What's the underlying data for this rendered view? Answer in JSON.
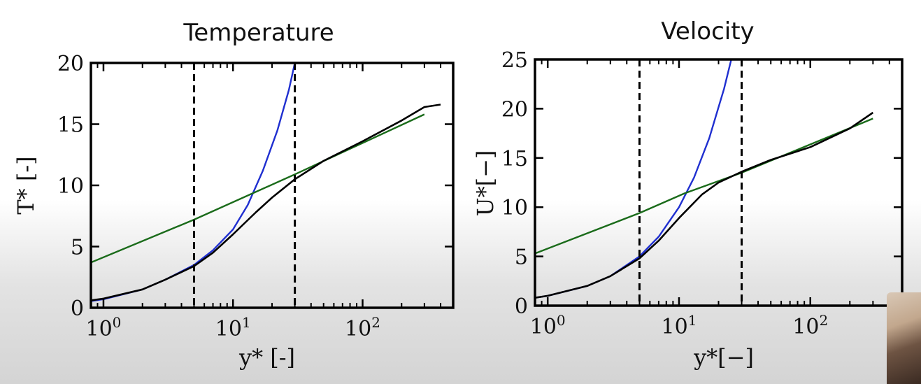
{
  "chart_data": [
    {
      "type": "line",
      "title": "Temperature",
      "xlabel": "y* [-]",
      "ylabel": "T* [-]",
      "xscale": "log",
      "xlim": [
        0.8,
        500
      ],
      "ylim": [
        0,
        20
      ],
      "xticks": [
        {
          "value": 1,
          "label": "10",
          "exp": "0"
        },
        {
          "value": 10,
          "label": "10",
          "exp": "1"
        },
        {
          "value": 100,
          "label": "10",
          "exp": "2"
        }
      ],
      "yticks": [
        0,
        5,
        10,
        15,
        20
      ],
      "vlines": [
        5,
        30
      ],
      "series": [
        {
          "color": "#1f2fd0",
          "x": [
            0.8,
            1,
            2,
            3,
            5,
            7,
            10,
            13,
            17,
            22,
            27,
            30
          ],
          "y": [
            0.55,
            0.7,
            1.5,
            2.3,
            3.5,
            4.7,
            6.4,
            8.4,
            11.2,
            14.5,
            17.8,
            20
          ]
        },
        {
          "color": "#1a6b1a",
          "x": [
            0.8,
            5,
            30,
            300
          ],
          "y": [
            3.7,
            7.2,
            10.9,
            15.8
          ]
        },
        {
          "color": "#000000",
          "x": [
            0.8,
            1,
            2,
            3,
            5,
            7,
            10,
            15,
            20,
            30,
            50,
            100,
            200,
            300,
            400
          ],
          "y": [
            0.6,
            0.75,
            1.5,
            2.3,
            3.4,
            4.5,
            6.0,
            7.8,
            9.0,
            10.5,
            12.0,
            13.6,
            15.3,
            16.4,
            16.6
          ]
        }
      ]
    },
    {
      "type": "line",
      "title": "Velocity",
      "xlabel": "y*[−]",
      "ylabel": "U*[−]",
      "xscale": "log",
      "xlim": [
        0.8,
        500
      ],
      "ylim": [
        0,
        25
      ],
      "xticks": [
        {
          "value": 1,
          "label": "10",
          "exp": "0"
        },
        {
          "value": 10,
          "label": "10",
          "exp": "1"
        },
        {
          "value": 100,
          "label": "10",
          "exp": "2"
        }
      ],
      "yticks": [
        0,
        5,
        10,
        15,
        20,
        25
      ],
      "vlines": [
        5,
        30
      ],
      "series": [
        {
          "color": "#1f2fd0",
          "x": [
            0.8,
            1,
            2,
            3,
            5,
            7,
            10,
            13,
            17,
            22,
            25
          ],
          "y": [
            0.8,
            1.0,
            2.0,
            3.0,
            5.0,
            7.0,
            10.0,
            13.0,
            17.0,
            22.0,
            25.0
          ]
        },
        {
          "color": "#1a6b1a",
          "x": [
            0.8,
            5,
            11,
            30,
            300
          ],
          "y": [
            5.3,
            9.4,
            11.4,
            13.5,
            19.0
          ]
        },
        {
          "color": "#000000",
          "x": [
            0.8,
            1,
            2,
            3,
            5,
            7,
            10,
            15,
            20,
            30,
            50,
            100,
            200,
            300
          ],
          "y": [
            0.8,
            1.0,
            2.0,
            3.0,
            4.8,
            6.6,
            8.9,
            11.3,
            12.5,
            13.6,
            14.8,
            16.1,
            18.0,
            19.6
          ]
        }
      ]
    }
  ]
}
